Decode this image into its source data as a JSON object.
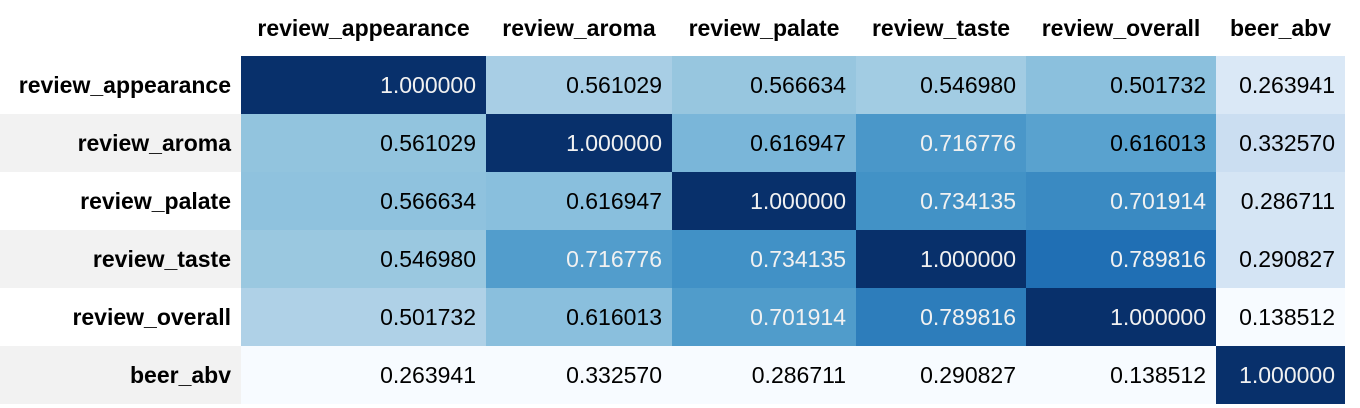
{
  "chart_data": {
    "type": "heatmap",
    "colormap": "Blues",
    "columns": [
      "review_appearance",
      "review_aroma",
      "review_palate",
      "review_taste",
      "review_overall",
      "beer_abv"
    ],
    "rows": [
      {
        "label": "review_appearance",
        "values": [
          1.0,
          0.561029,
          0.566634,
          0.54698,
          0.501732,
          0.263941
        ],
        "display": [
          "1.000000",
          "0.561029",
          "0.566634",
          "0.546980",
          "0.501732",
          "0.263941"
        ]
      },
      {
        "label": "review_aroma",
        "values": [
          0.561029,
          1.0,
          0.616947,
          0.716776,
          0.616013,
          0.33257
        ],
        "display": [
          "0.561029",
          "1.000000",
          "0.616947",
          "0.716776",
          "0.616013",
          "0.332570"
        ]
      },
      {
        "label": "review_palate",
        "values": [
          0.566634,
          0.616947,
          1.0,
          0.734135,
          0.701914,
          0.286711
        ],
        "display": [
          "0.566634",
          "0.616947",
          "1.000000",
          "0.734135",
          "0.701914",
          "0.286711"
        ]
      },
      {
        "label": "review_taste",
        "values": [
          0.54698,
          0.716776,
          0.734135,
          1.0,
          0.789816,
          0.290827
        ],
        "display": [
          "0.546980",
          "0.716776",
          "0.734135",
          "1.000000",
          "0.789816",
          "0.290827"
        ]
      },
      {
        "label": "review_overall",
        "values": [
          0.501732,
          0.616013,
          0.701914,
          0.789816,
          1.0,
          0.138512
        ],
        "display": [
          "0.501732",
          "0.616013",
          "0.701914",
          "0.789816",
          "1.000000",
          "0.138512"
        ]
      },
      {
        "label": "beer_abv",
        "values": [
          0.263941,
          0.33257,
          0.286711,
          0.290827,
          0.138512,
          1.0
        ],
        "display": [
          "0.263941",
          "0.332570",
          "0.286711",
          "0.290827",
          "0.138512",
          "1.000000"
        ]
      }
    ]
  }
}
